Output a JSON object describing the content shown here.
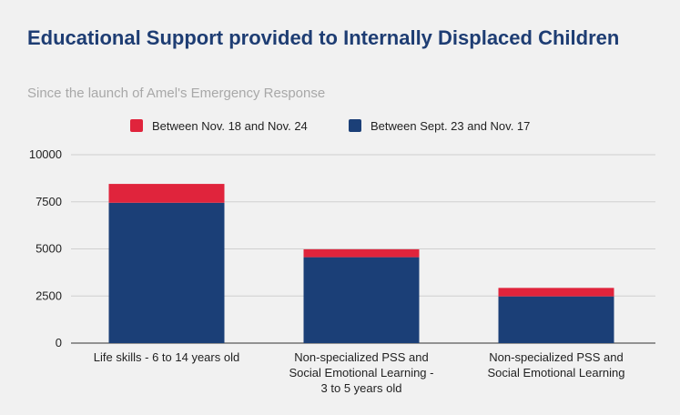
{
  "chart_data": {
    "type": "bar",
    "stacked": true,
    "title": "Educational Support provided to Internally Displaced Children",
    "subtitle": "Since the launch of Amel's Emergency Response",
    "categories": [
      [
        "Life skills - 6 to 14 years old"
      ],
      [
        "Non-specialized PSS and",
        "Social Emotional Learning -",
        "3 to 5 years old"
      ],
      [
        "Non-specialized PSS and",
        "Social Emotional Learning"
      ]
    ],
    "series": [
      {
        "name": "Between Sept. 23 and Nov. 17",
        "color": "#1b3f77",
        "values": [
          7450,
          4560,
          2480
        ]
      },
      {
        "name": "Between Nov. 18 and Nov. 24",
        "color": "#e0243c",
        "values": [
          1000,
          420,
          450
        ]
      }
    ],
    "legend": [
      {
        "name": "Between Nov. 18 and Nov. 24",
        "color": "#e0243c"
      },
      {
        "name": "Between Sept. 23 and Nov. 17",
        "color": "#1b3f77"
      }
    ],
    "legend_position": "top",
    "yticks": [
      "0",
      "2500",
      "5000",
      "7500",
      "10000"
    ],
    "ylim": [
      0,
      10000
    ],
    "grid": true
  }
}
